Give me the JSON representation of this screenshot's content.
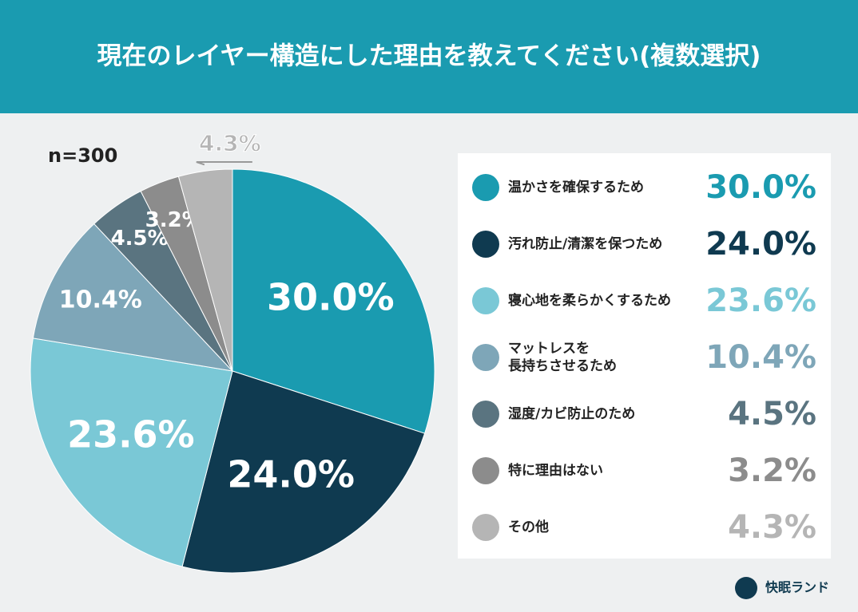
{
  "chart_data": {
    "type": "pie",
    "title": "現在のレイヤー構造にした理由を教えてください(複数選択)",
    "subtitle": "n=300",
    "categories": [
      "温かさを確保するため",
      "汚れ防止/清潔を保つため",
      "寝心地を柔らかくするため",
      "マットレスを\n長持ちさせるため",
      "湿度/カビ防止のため",
      "特に理由はない",
      "その他"
    ],
    "values": [
      30.0,
      24.0,
      23.6,
      10.4,
      4.5,
      3.2,
      4.3
    ],
    "value_labels": [
      "30.0%",
      "24.0%",
      "23.6%",
      "10.4%",
      "4.5%",
      "3.2%",
      "4.3%"
    ],
    "colors": [
      "#1a9bb0",
      "#0f3a50",
      "#7ac8d6",
      "#7ea6b8",
      "#5a7480",
      "#8c8c8c",
      "#b5b5b5"
    ],
    "brand": "快眠ランド"
  }
}
